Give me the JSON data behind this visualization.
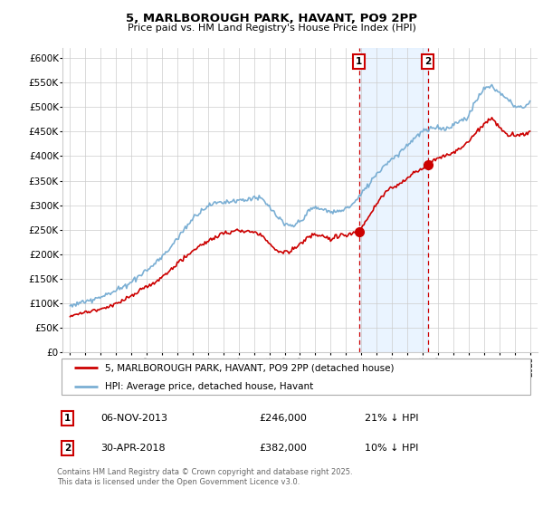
{
  "title": "5, MARLBOROUGH PARK, HAVANT, PO9 2PP",
  "subtitle": "Price paid vs. HM Land Registry's House Price Index (HPI)",
  "legend_line1": "5, MARLBOROUGH PARK, HAVANT, PO9 2PP (detached house)",
  "legend_line2": "HPI: Average price, detached house, Havant",
  "annotation1_label": "1",
  "annotation1_date": "06-NOV-2013",
  "annotation1_price": "£246,000",
  "annotation1_hpi": "21% ↓ HPI",
  "annotation2_label": "2",
  "annotation2_date": "30-APR-2018",
  "annotation2_price": "£382,000",
  "annotation2_hpi": "10% ↓ HPI",
  "footnote": "Contains HM Land Registry data © Crown copyright and database right 2025.\nThis data is licensed under the Open Government Licence v3.0.",
  "hpi_color": "#7bafd4",
  "price_color": "#cc0000",
  "dot_color": "#cc0000",
  "annotation_box_color": "#cc0000",
  "vertical_line_color": "#cc0000",
  "shading_color": "#ddeeff",
  "ylim": [
    0,
    620000
  ],
  "yticks": [
    0,
    50000,
    100000,
    150000,
    200000,
    250000,
    300000,
    350000,
    400000,
    450000,
    500000,
    550000,
    600000
  ],
  "xlim_start": 1994.5,
  "xlim_end": 2025.5,
  "marker1_x": 2013.85,
  "marker1_y": 246000,
  "marker2_x": 2018.33,
  "marker2_y": 382000,
  "vline1_x": 2013.85,
  "vline2_x": 2018.33
}
